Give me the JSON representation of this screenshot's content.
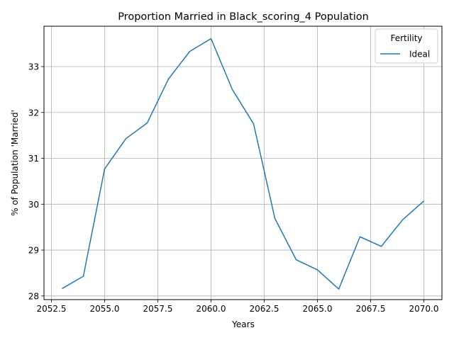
{
  "chart_data": {
    "type": "line",
    "title": "Proportion Married in Black_scoring_4 Population",
    "xlabel": "Years",
    "ylabel": "% of Population 'Married'",
    "xlim": [
      2052.15,
      2070.85
    ],
    "ylim": [
      27.92,
      33.88
    ],
    "x_ticks": [
      2052.5,
      2055.0,
      2057.5,
      2060.0,
      2062.5,
      2065.0,
      2067.5,
      2070.0
    ],
    "x_tick_labels": [
      "2052.5",
      "2055.0",
      "2057.5",
      "2060.0",
      "2062.5",
      "2065.0",
      "2067.5",
      "2070.0"
    ],
    "y_ticks": [
      28,
      29,
      30,
      31,
      32,
      33
    ],
    "y_tick_labels": [
      "28",
      "29",
      "30",
      "31",
      "32",
      "33"
    ],
    "grid": true,
    "legend": {
      "title": "Fertility",
      "placement": "top-right"
    },
    "series": [
      {
        "name": "Ideal",
        "color": "#1f77b4",
        "x": [
          2053,
          2054,
          2055,
          2056,
          2057,
          2058,
          2059,
          2060,
          2061,
          2062,
          2063,
          2064,
          2065,
          2066,
          2067,
          2068,
          2069,
          2070
        ],
        "y": [
          28.16,
          28.43,
          30.77,
          31.43,
          31.77,
          32.73,
          33.33,
          33.61,
          32.5,
          31.75,
          29.69,
          28.79,
          28.57,
          28.15,
          29.29,
          29.08,
          29.66,
          30.07
        ]
      }
    ]
  }
}
